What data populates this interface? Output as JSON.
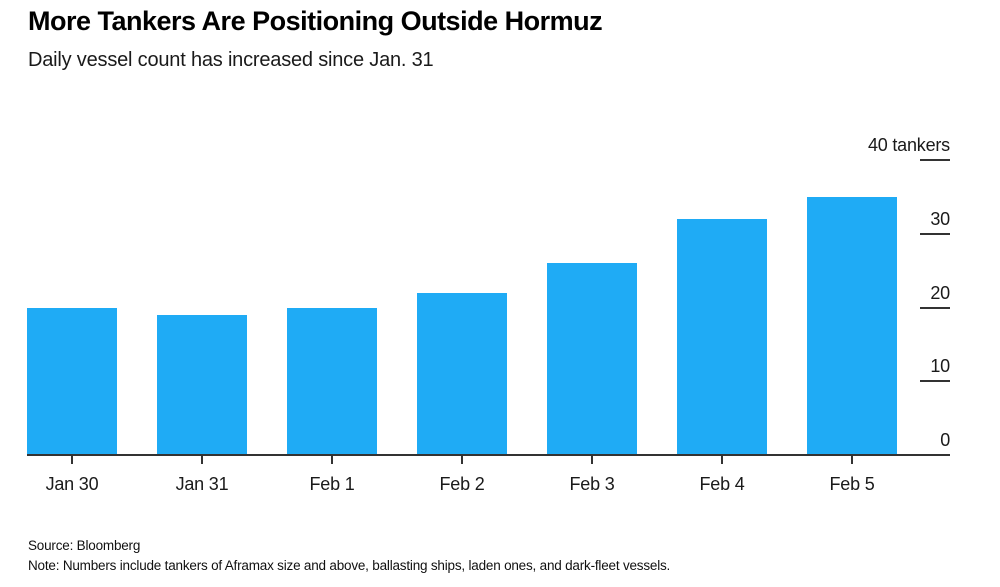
{
  "header": {
    "title": "More Tankers Are Positioning Outside Hormuz",
    "subtitle": "Daily vessel count has increased since Jan. 31"
  },
  "chart_data": {
    "type": "bar",
    "title": "More Tankers Are Positioning Outside Hormuz",
    "subtitle": "Daily vessel count has increased since Jan. 31",
    "categories": [
      "Jan 30",
      "Jan 31",
      "Feb 1",
      "Feb 2",
      "Feb 3",
      "Feb 4",
      "Feb 5"
    ],
    "values": [
      20,
      19,
      20,
      22,
      26,
      32,
      35
    ],
    "xlabel": "",
    "ylabel": "tankers",
    "ylim": [
      0,
      40
    ],
    "y_ticks": [
      {
        "value": 0,
        "label": "0"
      },
      {
        "value": 10,
        "label": "10"
      },
      {
        "value": 20,
        "label": "20"
      },
      {
        "value": 30,
        "label": "30"
      },
      {
        "value": 40,
        "label": "40 tankers"
      }
    ],
    "value_axis_side": "right",
    "grid": false,
    "legend_position": "none",
    "bar_color": "#1fabf5",
    "axis_color": "#333333",
    "text_color": "#1a1a1a"
  },
  "footer": {
    "source": "Source: Bloomberg",
    "note": "Note: Numbers include tankers of Aframax size and above, ballasting ships, laden ones, and dark-fleet vessels."
  }
}
